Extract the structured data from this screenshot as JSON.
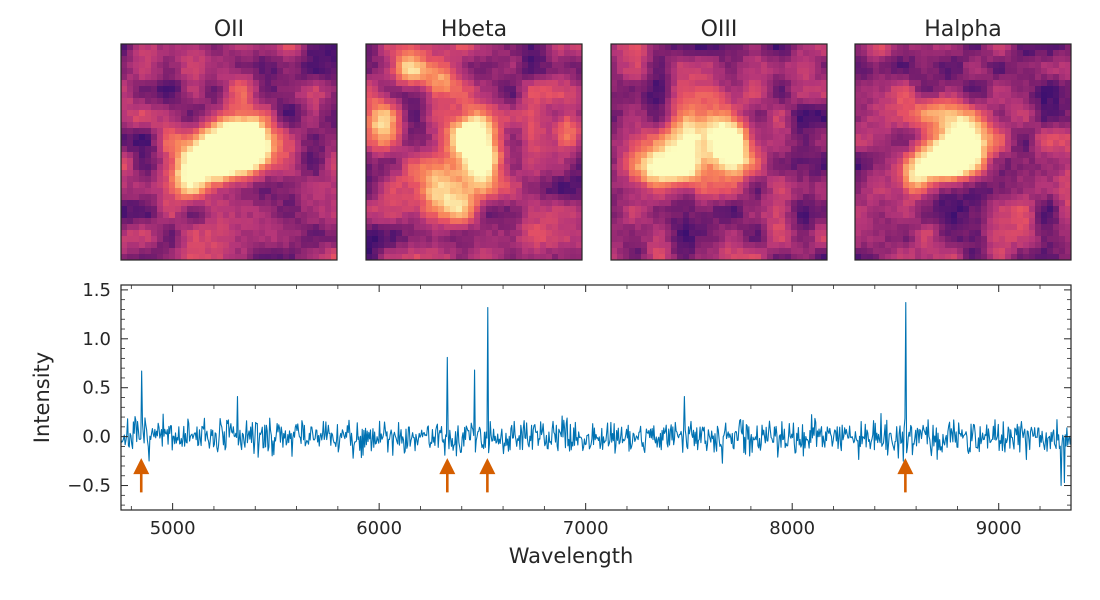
{
  "chart_data": [
    {
      "type": "heatmap",
      "panels": [
        {
          "title": "OII",
          "blobs": [
            {
              "cx": 0.5,
              "cy": 0.47,
              "w": 0.1,
              "h": 0.09,
              "v": 1.0
            },
            {
              "cx": 0.42,
              "cy": 0.53,
              "w": 0.11,
              "h": 0.08,
              "v": 0.75
            },
            {
              "cx": 0.58,
              "cy": 0.44,
              "w": 0.09,
              "h": 0.09,
              "v": 0.7
            },
            {
              "cx": 0.3,
              "cy": 0.62,
              "w": 0.07,
              "h": 0.08,
              "v": 0.55
            },
            {
              "cx": 0.63,
              "cy": 0.48,
              "w": 0.06,
              "h": 0.07,
              "v": 0.45
            },
            {
              "cx": 0.55,
              "cy": 0.2,
              "w": 0.08,
              "h": 0.08,
              "v": 0.3
            }
          ]
        },
        {
          "title": "Hbeta",
          "blobs": [
            {
              "cx": 0.52,
              "cy": 0.51,
              "w": 0.08,
              "h": 0.11,
              "v": 1.0
            },
            {
              "cx": 0.48,
              "cy": 0.4,
              "w": 0.07,
              "h": 0.08,
              "v": 0.55
            },
            {
              "cx": 0.07,
              "cy": 0.37,
              "w": 0.06,
              "h": 0.09,
              "v": 0.7
            },
            {
              "cx": 0.18,
              "cy": 0.12,
              "w": 0.07,
              "h": 0.06,
              "v": 0.6
            },
            {
              "cx": 0.35,
              "cy": 0.15,
              "w": 0.06,
              "h": 0.06,
              "v": 0.5
            },
            {
              "cx": 0.3,
              "cy": 0.66,
              "w": 0.12,
              "h": 0.07,
              "v": 0.6
            },
            {
              "cx": 0.93,
              "cy": 0.4,
              "w": 0.05,
              "h": 0.07,
              "v": 0.5
            },
            {
              "cx": 0.42,
              "cy": 0.75,
              "w": 0.07,
              "h": 0.06,
              "v": 0.4
            }
          ]
        },
        {
          "title": "OIII",
          "blobs": [
            {
              "cx": 0.48,
              "cy": 0.42,
              "w": 0.09,
              "h": 0.11,
              "v": 1.0
            },
            {
              "cx": 0.58,
              "cy": 0.5,
              "w": 0.06,
              "h": 0.08,
              "v": 0.55
            },
            {
              "cx": 0.23,
              "cy": 0.58,
              "w": 0.1,
              "h": 0.08,
              "v": 0.85
            },
            {
              "cx": 0.34,
              "cy": 0.56,
              "w": 0.06,
              "h": 0.06,
              "v": 0.5
            },
            {
              "cx": 0.32,
              "cy": 0.37,
              "w": 0.07,
              "h": 0.07,
              "v": 0.3
            }
          ]
        },
        {
          "title": "Halpha",
          "blobs": [
            {
              "cx": 0.51,
              "cy": 0.45,
              "w": 0.08,
              "h": 0.1,
              "v": 1.0
            },
            {
              "cx": 0.44,
              "cy": 0.53,
              "w": 0.08,
              "h": 0.07,
              "v": 0.75
            },
            {
              "cx": 0.33,
              "cy": 0.56,
              "w": 0.08,
              "h": 0.07,
              "v": 0.6
            },
            {
              "cx": 0.27,
              "cy": 0.64,
              "w": 0.05,
              "h": 0.06,
              "v": 0.55
            },
            {
              "cx": 0.37,
              "cy": 0.3,
              "w": 0.08,
              "h": 0.06,
              "v": 0.35
            }
          ]
        }
      ]
    },
    {
      "type": "line",
      "title": "",
      "xlabel": "Wavelength",
      "ylabel": "Intensity",
      "xlim": [
        4750,
        9350
      ],
      "ylim": [
        -0.75,
        1.55
      ],
      "xticks": [
        5000,
        6000,
        7000,
        8000,
        9000
      ],
      "xtick_labels": [
        "5000",
        "6000",
        "7000",
        "8000",
        "9000"
      ],
      "yticks": [
        -0.5,
        0.0,
        0.5,
        1.0,
        1.5
      ],
      "ytick_labels": [
        "−0.5",
        "0.0",
        "0.5",
        "1.0",
        "1.5"
      ],
      "series": [
        {
          "name": "spectrum",
          "color": "#0072b2",
          "noise": {
            "start": 4750,
            "end": 9350,
            "step": 4,
            "sigma": 0.09,
            "seed": 7
          },
          "peaks": [
            {
              "x": 4848,
              "y": 0.67
            },
            {
              "x": 5315,
              "y": 0.41
            },
            {
              "x": 6330,
              "y": 0.81
            },
            {
              "x": 6462,
              "y": 0.68
            },
            {
              "x": 6524,
              "y": 1.32
            },
            {
              "x": 7478,
              "y": 0.41
            },
            {
              "x": 8548,
              "y": 1.37
            },
            {
              "x": 9300,
              "y": -0.5
            },
            {
              "x": 9318,
              "y": -0.47
            }
          ]
        }
      ],
      "markers": {
        "color": "#d55e00",
        "shape": "up-arrow",
        "x": [
          4848,
          6330,
          6524,
          8548
        ],
        "y_base": -0.57,
        "y_tip": -0.22
      }
    }
  ],
  "colors": {
    "colormap_stops": [
      "#0b0724",
      "#3b0f70",
      "#7b1f6e",
      "#b63679",
      "#e65164",
      "#f8845a",
      "#fdc47f",
      "#fcfdbf"
    ],
    "line": "#0072b2",
    "marker": "#d55e00",
    "text": "#262626"
  }
}
